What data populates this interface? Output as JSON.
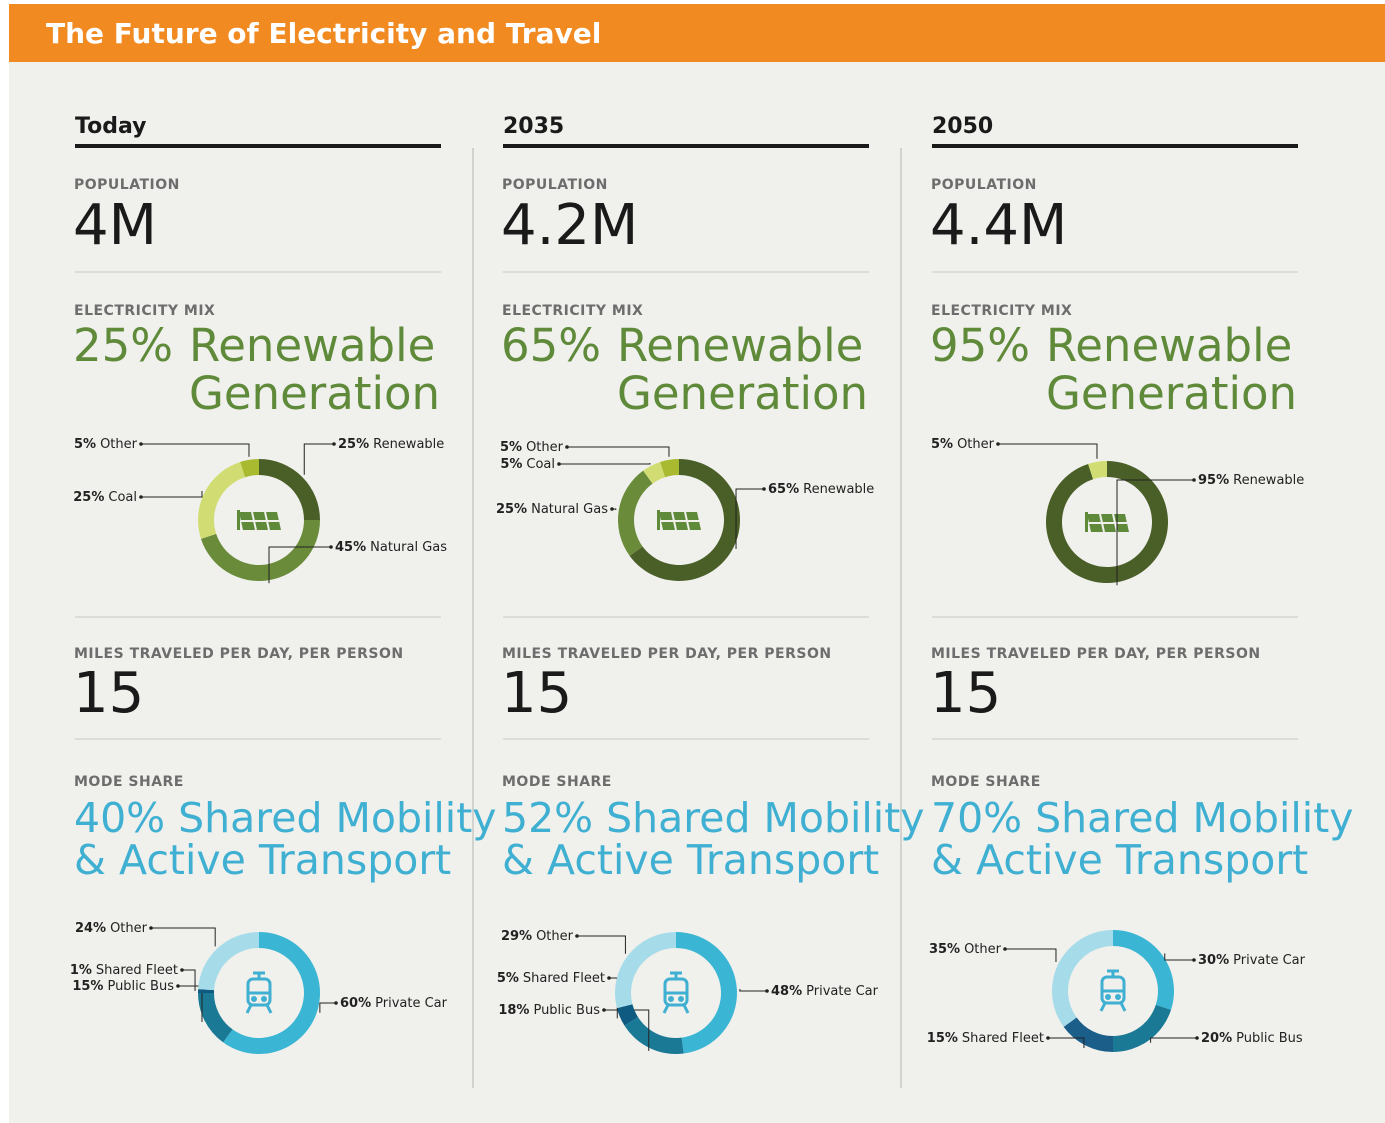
{
  "title": "The Future of Electricity and Travel",
  "columns": [
    {
      "heading": "Today",
      "population_label": "POPULATION",
      "population": "4M",
      "mix_label": "ELECTRICITY MIX",
      "mix_pct": "25%",
      "mix_line1": "Renewable",
      "mix_line2": "Generation",
      "miles_label": "MILES TRAVELED PER DAY, PER PERSON",
      "miles": 15,
      "mode_label": "MODE SHARE",
      "mode_line1": "40% Shared Mobility",
      "mode_line2": "& Active Transport"
    },
    {
      "heading": "2035",
      "population_label": "POPULATION",
      "population": "4.2M",
      "mix_label": "ELECTRICITY MIX",
      "mix_pct": "65%",
      "mix_line1": "Renewable",
      "mix_line2": "Generation",
      "miles_label": "MILES TRAVELED PER DAY, PER PERSON",
      "miles": 15,
      "mode_label": "MODE SHARE",
      "mode_line1": "52% Shared Mobility",
      "mode_line2": "& Active Transport"
    },
    {
      "heading": "2050",
      "population_label": "POPULATION",
      "population": "4.4M",
      "mix_label": "ELECTRICITY MIX",
      "mix_pct": "95%",
      "mix_line1": "Renewable",
      "mix_line2": "Generation",
      "miles_label": "MILES TRAVELED PER DAY, PER PERSON",
      "miles": 15,
      "mode_label": "MODE SHARE",
      "mode_line1": "70% Shared Mobility",
      "mode_line2": "& Active Transport"
    }
  ],
  "chart_data": [
    {
      "type": "pie",
      "categories": [
        "Renewable",
        "Natural Gas",
        "Coal",
        "Other"
      ],
      "values": [
        25,
        45,
        25,
        5
      ],
      "value_labels": [
        "25%",
        "45%",
        "25%",
        "5%"
      ],
      "colors": [
        "#4a5e27",
        "#6a8c3a",
        "#d1dd73",
        "#a9b930"
      ]
    },
    {
      "type": "pie",
      "categories": [
        "Renewable",
        "Natural Gas",
        "Coal",
        "Other"
      ],
      "values": [
        65,
        25,
        5,
        5
      ],
      "value_labels": [
        "65%",
        "25%",
        "5%",
        "5%"
      ],
      "colors": [
        "#4a5e27",
        "#6a8c3a",
        "#d1dd73",
        "#a9b930"
      ]
    },
    {
      "type": "pie",
      "categories": [
        "Renewable",
        "Other"
      ],
      "values": [
        95,
        5
      ],
      "value_labels": [
        "95%",
        "5%"
      ],
      "colors": [
        "#4a5e27",
        "#d1dd73"
      ]
    },
    {
      "type": "pie",
      "categories": [
        "Private Car",
        "Public Bus",
        "Shared Fleet",
        "Other"
      ],
      "values": [
        60,
        15,
        1,
        24
      ],
      "value_labels": [
        "60%",
        "15%",
        "1%",
        "24%"
      ],
      "colors": [
        "#3ab5d3",
        "#1a7a96",
        "#0f5a80",
        "#a6dce9"
      ]
    },
    {
      "type": "pie",
      "categories": [
        "Private Car",
        "Public Bus",
        "Shared Fleet",
        "Other"
      ],
      "values": [
        48,
        18,
        5,
        29
      ],
      "value_labels": [
        "48%",
        "18%",
        "5%",
        "29%"
      ],
      "colors": [
        "#3ab5d3",
        "#1a7a96",
        "#0f5a80",
        "#a6dce9"
      ]
    },
    {
      "type": "pie",
      "categories": [
        "Private Car",
        "Public Bus",
        "Shared Fleet",
        "Other"
      ],
      "values": [
        30,
        20,
        15,
        35
      ],
      "value_labels": [
        "30%",
        "20%",
        "15%",
        "35%"
      ],
      "colors": [
        "#3ab5d3",
        "#1a7a96",
        "#1b5e8a",
        "#a6dce9"
      ]
    }
  ]
}
